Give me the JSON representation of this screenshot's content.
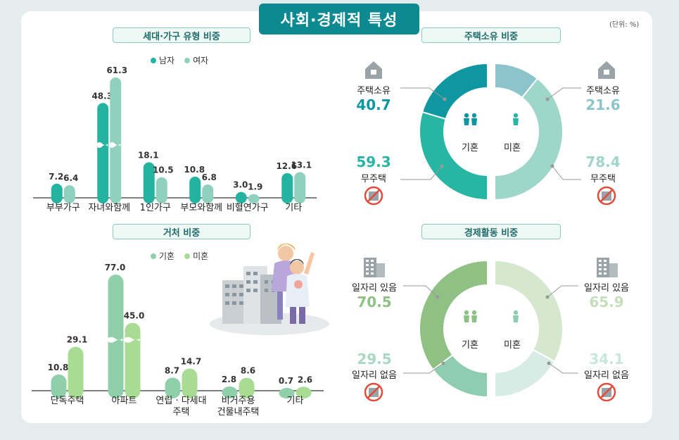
{
  "title": "사회·경제적 특성",
  "unit": "(단위: %)",
  "colors": {
    "teal": "#23b3a0",
    "mint": "#8fd1bd",
    "green_dark": "#8fcfa9",
    "green_light": "#a8dc94",
    "donut_teal": "#0f97a1",
    "donut_teal2": "#27b5a4",
    "donut_light1": "#8dc4cb",
    "donut_light2": "#9fd6ca",
    "econ_dark": "#8fc084",
    "econ_dark2": "#8fcdb0",
    "econ_light": "#d5e8cd",
    "econ_light2": "#d6ece4"
  },
  "chart_data": [
    {
      "type": "bar",
      "title": "세대·가구 유형 비중",
      "categories": [
        "부부가구",
        "자녀와함께",
        "1인가구",
        "부모와함께",
        "비혈연가구",
        "기타"
      ],
      "series": [
        {
          "name": "남자",
          "values": [
            7.2,
            48.3,
            18.1,
            10.8,
            3.0,
            12.6
          ]
        },
        {
          "name": "여자",
          "values": [
            6.4,
            61.3,
            10.5,
            6.8,
            1.9,
            13.1
          ]
        }
      ]
    },
    {
      "type": "bar",
      "title": "거처 비중",
      "categories": [
        "단독주택",
        "아파트",
        "연립 · 다세대 주택",
        "비거주용 건물내주택",
        "기타"
      ],
      "categories_lines": [
        [
          "단독주택"
        ],
        [
          "아파트"
        ],
        [
          "연립 · 다세대",
          "주택"
        ],
        [
          "비거주용",
          "건물내주택"
        ],
        [
          "기타"
        ]
      ],
      "series": [
        {
          "name": "기혼",
          "values": [
            10.8,
            77.0,
            8.7,
            2.8,
            0.7
          ]
        },
        {
          "name": "미혼",
          "values": [
            29.1,
            45.0,
            14.7,
            8.6,
            2.6
          ]
        }
      ]
    },
    {
      "type": "pie",
      "title": "주택소유 비중",
      "groups": [
        {
          "name": "기혼",
          "slices": [
            {
              "label": "주택소유",
              "value": 40.7
            },
            {
              "label": "무주택",
              "value": 59.3
            }
          ]
        },
        {
          "name": "미혼",
          "slices": [
            {
              "label": "주택소유",
              "value": 21.6
            },
            {
              "label": "무주택",
              "value": 78.4
            }
          ]
        }
      ]
    },
    {
      "type": "pie",
      "title": "경제활동 비중",
      "groups": [
        {
          "name": "기혼",
          "slices": [
            {
              "label": "일자리 있음",
              "value": 70.5
            },
            {
              "label": "일자리 없음",
              "value": 29.5
            }
          ]
        },
        {
          "name": "미혼",
          "slices": [
            {
              "label": "일자리 있음",
              "value": 65.9
            },
            {
              "label": "일자리 없음",
              "value": 34.1
            }
          ]
        }
      ]
    }
  ],
  "labels": {
    "house_title": "주택소유 비중",
    "econ_title": "경제활동 비중",
    "married": "기혼",
    "single": "미혼",
    "own": "주택소유",
    "no_own": "무주택",
    "job": "일자리 있음",
    "no_job": "일자리 없음",
    "own_m": "40.7",
    "noown_m": "59.3",
    "own_s": "21.6",
    "noown_s": "78.4",
    "job_m": "70.5",
    "nojob_m": "29.5",
    "job_s": "65.9",
    "nojob_s": "34.1"
  }
}
